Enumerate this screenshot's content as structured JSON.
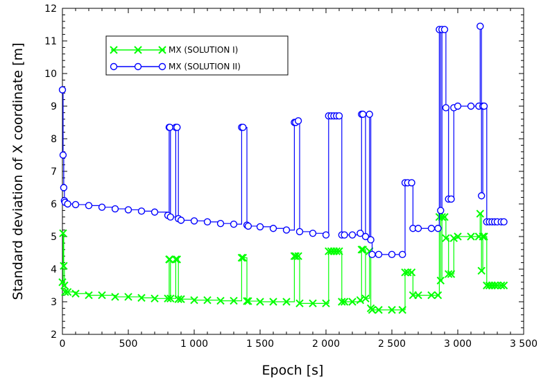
{
  "chart_data": {
    "type": "line",
    "xlabel": "Epoch [s]",
    "ylabel": "Standard deviation of X coordinate [m]",
    "xlim": [
      0,
      3500
    ],
    "ylim": [
      2,
      12
    ],
    "x_ticks": [
      0,
      500,
      1000,
      1500,
      2000,
      2500,
      3000,
      3500
    ],
    "x_tick_labels": [
      "0",
      "500",
      "1 000",
      "1 500",
      "2 000",
      "2 500",
      "3 000",
      "3 500"
    ],
    "y_ticks": [
      2,
      3,
      4,
      5,
      6,
      7,
      8,
      9,
      10,
      11,
      12
    ],
    "y_tick_labels": [
      "2",
      "3",
      "4",
      "5",
      "6",
      "7",
      "8",
      "9",
      "10",
      "11",
      "12"
    ],
    "grid": false,
    "legend_position": "top-left",
    "series": [
      {
        "name": "MX (SOLUTION I)",
        "color": "#00ff00",
        "marker": "x",
        "x": [
          0,
          5,
          10,
          15,
          20,
          40,
          100,
          200,
          300,
          400,
          500,
          600,
          700,
          800,
          810,
          815,
          820,
          860,
          870,
          880,
          900,
          1000,
          1100,
          1200,
          1300,
          1360,
          1370,
          1400,
          1410,
          1500,
          1600,
          1700,
          1760,
          1770,
          1790,
          1800,
          1900,
          2000,
          2020,
          2040,
          2060,
          2080,
          2100,
          2120,
          2140,
          2200,
          2260,
          2270,
          2280,
          2300,
          2330,
          2340,
          2350,
          2400,
          2500,
          2580,
          2600,
          2620,
          2650,
          2660,
          2700,
          2800,
          2850,
          2860,
          2870,
          2880,
          2900,
          2910,
          2930,
          2950,
          2970,
          3000,
          3100,
          3160,
          3170,
          3180,
          3190,
          3200,
          3220,
          3240,
          3260,
          3280,
          3300,
          3330,
          3350
        ],
        "y": [
          3.6,
          5.1,
          4.1,
          3.5,
          3.3,
          3.3,
          3.25,
          3.2,
          3.2,
          3.15,
          3.15,
          3.12,
          3.1,
          3.1,
          4.3,
          4.3,
          3.1,
          4.3,
          4.3,
          3.08,
          3.08,
          3.05,
          3.05,
          3.03,
          3.03,
          4.35,
          4.35,
          3.02,
          3.02,
          3.0,
          3.0,
          3.0,
          4.4,
          4.4,
          4.4,
          2.95,
          2.95,
          2.95,
          4.55,
          4.55,
          4.55,
          4.55,
          4.55,
          3.0,
          3.0,
          3.0,
          3.05,
          4.6,
          4.6,
          3.1,
          4.55,
          2.8,
          2.75,
          2.75,
          2.75,
          2.75,
          3.9,
          3.9,
          3.9,
          3.2,
          3.2,
          3.2,
          3.2,
          5.6,
          3.65,
          5.6,
          5.6,
          4.95,
          3.85,
          3.85,
          4.95,
          5.0,
          5.0,
          5.0,
          5.7,
          3.95,
          5.0,
          5.0,
          3.5,
          3.5,
          3.5,
          3.5,
          3.5,
          3.5,
          3.5
        ]
      },
      {
        "name": "MX (SOLUTION II)",
        "color": "#0000ff",
        "marker": "o",
        "x": [
          0,
          5,
          10,
          15,
          20,
          40,
          100,
          200,
          300,
          400,
          500,
          600,
          700,
          800,
          810,
          815,
          820,
          860,
          870,
          880,
          900,
          1000,
          1100,
          1200,
          1300,
          1360,
          1370,
          1400,
          1410,
          1500,
          1600,
          1700,
          1760,
          1770,
          1790,
          1800,
          1900,
          2000,
          2020,
          2040,
          2060,
          2080,
          2100,
          2120,
          2140,
          2200,
          2260,
          2270,
          2280,
          2300,
          2330,
          2340,
          2350,
          2400,
          2500,
          2580,
          2600,
          2620,
          2650,
          2660,
          2700,
          2800,
          2850,
          2860,
          2870,
          2880,
          2900,
          2910,
          2930,
          2950,
          2970,
          3000,
          3100,
          3160,
          3170,
          3180,
          3190,
          3200,
          3220,
          3240,
          3260,
          3280,
          3300,
          3330,
          3350
        ],
        "y": [
          9.5,
          7.5,
          6.5,
          6.1,
          6.05,
          6.0,
          5.98,
          5.95,
          5.9,
          5.85,
          5.82,
          5.78,
          5.75,
          5.65,
          8.35,
          8.35,
          5.6,
          8.35,
          8.35,
          5.55,
          5.5,
          5.48,
          5.45,
          5.4,
          5.38,
          8.35,
          8.35,
          5.35,
          5.32,
          5.3,
          5.25,
          5.2,
          8.5,
          8.5,
          8.55,
          5.15,
          5.1,
          5.05,
          8.7,
          8.7,
          8.7,
          8.7,
          8.7,
          5.05,
          5.05,
          5.05,
          5.1,
          8.75,
          8.75,
          5.0,
          8.75,
          4.9,
          4.45,
          4.45,
          4.45,
          4.45,
          6.65,
          6.65,
          6.65,
          5.25,
          5.25,
          5.25,
          5.25,
          11.35,
          5.8,
          11.35,
          11.35,
          8.95,
          6.15,
          6.15,
          8.95,
          9.0,
          9.0,
          9.0,
          11.45,
          6.25,
          9.0,
          9.0,
          5.45,
          5.45,
          5.45,
          5.45,
          5.45,
          5.45,
          5.45
        ]
      }
    ]
  }
}
